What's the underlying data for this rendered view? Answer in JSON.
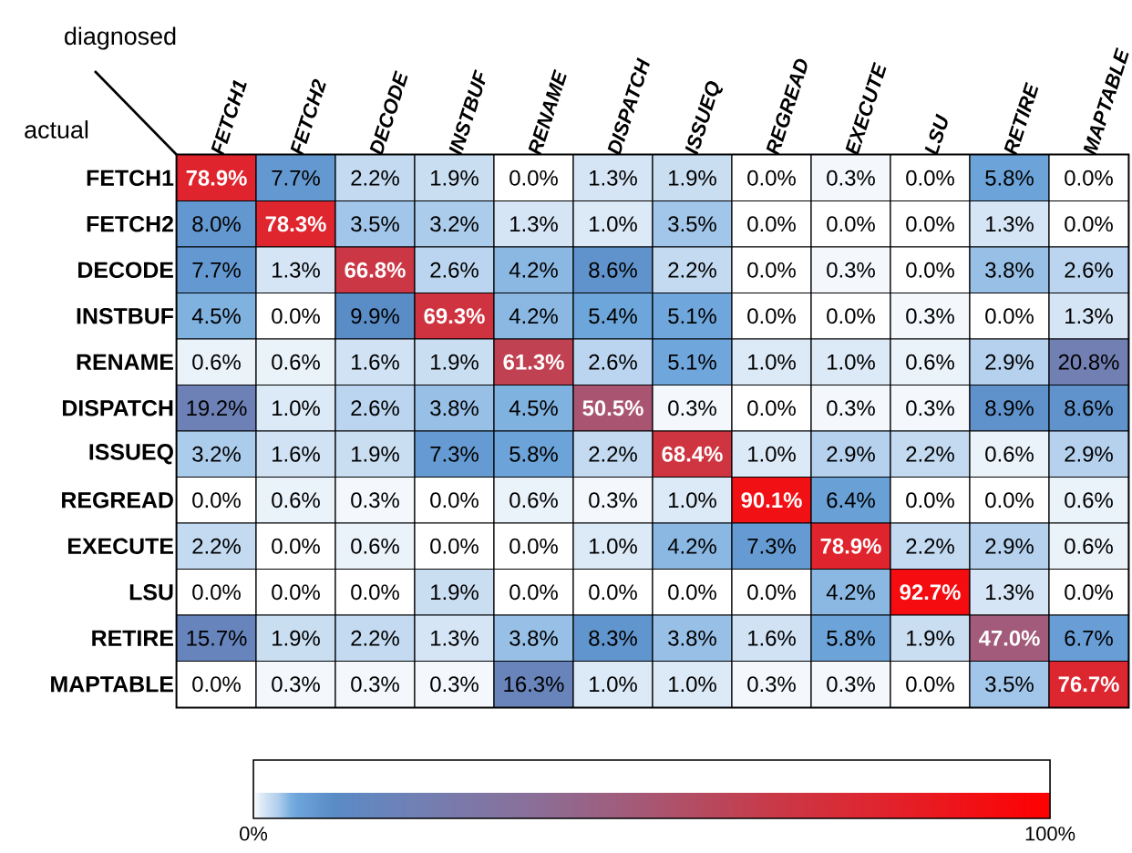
{
  "chart_data": {
    "type": "heatmap",
    "xlabel": "diagnosed",
    "ylabel": "actual",
    "categories": [
      "FETCH1",
      "FETCH2",
      "DECODE",
      "INSTBUF",
      "RENAME",
      "DISPATCH",
      "ISSUEQ",
      "REGREAD",
      "EXECUTE",
      "LSU",
      "RETIRE",
      "MAPTABLE"
    ],
    "y_categories": [
      "FETCH1",
      "FETCH2",
      "DECODE",
      "INSTBUF",
      "RENAME",
      "DISPATCH",
      "ISSUEQ",
      "REGREAD",
      "EXECUTE",
      "LSU",
      "RETIRE",
      "MAPTABLE"
    ],
    "cells": [
      [
        78.9,
        7.7,
        2.2,
        1.9,
        0.0,
        1.3,
        1.9,
        0.0,
        0.3,
        0.0,
        5.8,
        0.0
      ],
      [
        8.0,
        78.3,
        3.5,
        3.2,
        1.3,
        1.0,
        3.5,
        0.0,
        0.0,
        0.0,
        1.3,
        0.0
      ],
      [
        7.7,
        1.3,
        66.8,
        2.6,
        4.2,
        8.6,
        2.2,
        0.0,
        0.3,
        0.0,
        3.8,
        2.6
      ],
      [
        4.5,
        0.0,
        9.9,
        69.3,
        4.2,
        5.4,
        5.1,
        0.0,
        0.0,
        0.3,
        0.0,
        1.3
      ],
      [
        0.6,
        0.6,
        1.6,
        1.9,
        61.3,
        2.6,
        5.1,
        1.0,
        1.0,
        0.6,
        2.9,
        20.8
      ],
      [
        19.2,
        1.0,
        2.6,
        3.8,
        4.5,
        50.5,
        0.3,
        0.0,
        0.3,
        0.3,
        8.9,
        8.6
      ],
      [
        3.2,
        1.6,
        1.9,
        7.3,
        5.8,
        2.2,
        68.4,
        1.0,
        2.9,
        2.2,
        0.6,
        2.9
      ],
      [
        0.0,
        0.6,
        0.3,
        0.0,
        0.6,
        0.3,
        1.0,
        90.1,
        6.4,
        0.0,
        0.0,
        0.6
      ],
      [
        2.2,
        0.0,
        0.6,
        0.0,
        0.0,
        1.0,
        4.2,
        7.3,
        78.9,
        2.2,
        2.9,
        0.6
      ],
      [
        0.0,
        0.0,
        0.0,
        1.9,
        0.0,
        0.0,
        0.0,
        0.0,
        4.2,
        92.7,
        1.3,
        0.0
      ],
      [
        15.7,
        1.9,
        2.2,
        1.3,
        3.8,
        8.3,
        3.8,
        1.6,
        5.8,
        1.9,
        47.0,
        6.7
      ],
      [
        0.0,
        0.3,
        0.3,
        0.3,
        16.3,
        1.0,
        1.0,
        0.3,
        0.3,
        0.0,
        3.5,
        76.7
      ]
    ],
    "cell_labels": [
      [
        "78.9%",
        "7.7%",
        "2.2%",
        "1.9%",
        "0.0%",
        "1.3%",
        "1.9%",
        "0.0%",
        "0.3%",
        "0.0%",
        "5.8%",
        "0.0%"
      ],
      [
        "8.0%",
        "78.3%",
        "3.5%",
        "3.2%",
        "1.3%",
        "1.0%",
        "3.5%",
        "0.0%",
        "0.0%",
        "0.0%",
        "1.3%",
        "0.0%"
      ],
      [
        "7.7%",
        "1.3%",
        "66.8%",
        "2.6%",
        "4.2%",
        "8.6%",
        "2.2%",
        "0.0%",
        "0.3%",
        "0.0%",
        "3.8%",
        "2.6%"
      ],
      [
        "4.5%",
        "0.0%",
        "9.9%",
        "69.3%",
        "4.2%",
        "5.4%",
        "5.1%",
        "0.0%",
        "0.0%",
        "0.3%",
        "0.0%",
        "1.3%"
      ],
      [
        "0.6%",
        "0.6%",
        "1.6%",
        "1.9%",
        "61.3%",
        "2.6%",
        "5.1%",
        "1.0%",
        "1.0%",
        "0.6%",
        "2.9%",
        "20.8%"
      ],
      [
        "19.2%",
        "1.0%",
        "2.6%",
        "3.8%",
        "4.5%",
        "50.5%",
        "0.3%",
        "0.0%",
        "0.3%",
        "0.3%",
        "8.9%",
        "8.6%"
      ],
      [
        "3.2%",
        "1.6%",
        "1.9%",
        "7.3%",
        "5.8%",
        "2.2%",
        "68.4%",
        "1.0%",
        "2.9%",
        "2.2%",
        "0.6%",
        "2.9%"
      ],
      [
        "0.0%",
        "0.6%",
        "0.3%",
        "0.0%",
        "0.6%",
        "0.3%",
        "1.0%",
        "90.1%",
        "6.4%",
        "0.0%",
        "0.0%",
        "0.6%"
      ],
      [
        "2.2%",
        "0.0%",
        "0.6%",
        "0.0%",
        "0.0%",
        "1.0%",
        "4.2%",
        "7.3%",
        "78.9%",
        "2.2%",
        "2.9%",
        "0.6%"
      ],
      [
        "0.0%",
        "0.0%",
        "0.0%",
        "1.9%",
        "0.0%",
        "0.0%",
        "0.0%",
        "0.0%",
        "4.2%",
        "92.7%",
        "1.3%",
        "0.0%"
      ],
      [
        "15.7%",
        "1.9%",
        "2.2%",
        "1.3%",
        "3.8%",
        "8.3%",
        "3.8%",
        "1.6%",
        "5.8%",
        "1.9%",
        "47.0%",
        "6.7%"
      ],
      [
        "0.0%",
        "0.3%",
        "0.3%",
        "0.3%",
        "16.3%",
        "1.0%",
        "1.0%",
        "0.3%",
        "0.3%",
        "0.0%",
        "3.5%",
        "76.7%"
      ]
    ],
    "clim": [
      0,
      100
    ],
    "cticks": [
      {
        "value": 0,
        "label": "0%"
      },
      {
        "value": 100,
        "label": "100%"
      }
    ]
  }
}
